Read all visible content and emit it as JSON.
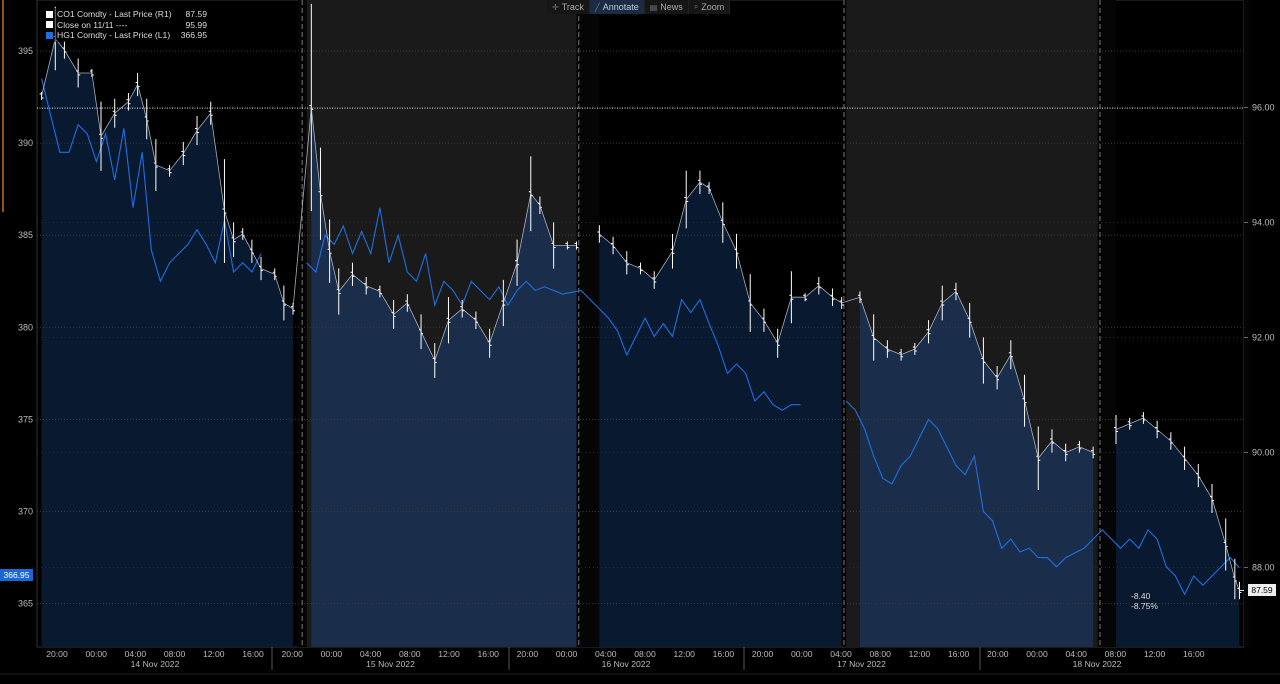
{
  "toolbar": {
    "track": "Track",
    "annotate": "Annotate",
    "news": "News",
    "zoom": "Zoom"
  },
  "legend": [
    {
      "name": "CO1 Comdty - Last Price (R1)",
      "value": "87.59",
      "color": "#ffffff"
    },
    {
      "name": "Close on 11/11 ----",
      "value": "95.99",
      "color": "#ffffff"
    },
    {
      "name": "HG1 Comdty - Last Price (L1)",
      "value": "366.95",
      "color": "#1f6fe0"
    }
  ],
  "tags": {
    "left_last": "366.95",
    "right_last": "87.59",
    "change_abs": "-8.40",
    "change_pct": "-8.75%"
  },
  "colors": {
    "background": "#000000",
    "shade_light": "#1a2f4e",
    "shade_dark": "#081a33",
    "hg1_line": "#1f6fe0",
    "co1_bars": "#ffffff",
    "left_tag": "#1a68d8",
    "outage_band": "#1a1a1a"
  },
  "chart_data": {
    "type": "line",
    "x_axis": {
      "tick_labels": [
        "20:00",
        "00:00",
        "04:00",
        "08:00",
        "12:00",
        "16:00",
        "20:00",
        "00:00",
        "04:00",
        "08:00",
        "12:00",
        "16:00",
        "20:00",
        "00:00",
        "04:00",
        "08:00",
        "12:00",
        "16:00",
        "20:00",
        "00:00",
        "04:00",
        "08:00",
        "12:00",
        "16:00",
        "20:00",
        "00:00",
        "04:00",
        "08:00",
        "12:00",
        "16:00"
      ],
      "day_labels": [
        "14 Nov 2022",
        "15 Nov 2022",
        "16 Nov 2022",
        "17 Nov 2022",
        "18 Nov 2022"
      ]
    },
    "y_left": {
      "ticks": [
        365,
        370,
        375,
        380,
        385,
        390,
        395
      ],
      "ylim": [
        362,
        398
      ]
    },
    "y_right": {
      "ticks": [
        88.0,
        90.0,
        92.0,
        94.0,
        96.0
      ],
      "ylim": [
        85.7,
        97.7
      ]
    },
    "reference_line": {
      "value": 95.99,
      "axis": "right"
    },
    "series": [
      {
        "name": "CO1 Comdty - Last Price (R1)",
        "axis": "right",
        "style": "ohlc-bars",
        "values": [
          [
            0,
            96.2
          ],
          [
            1.5,
            97.2
          ],
          [
            2.5,
            97.0
          ],
          [
            4,
            96.6
          ],
          [
            5.5,
            96.6
          ],
          [
            6.5,
            95.5
          ],
          [
            8,
            95.9
          ],
          [
            9.5,
            96.1
          ],
          [
            10.5,
            96.4
          ],
          [
            11.5,
            95.8
          ],
          [
            12.5,
            95.0
          ],
          [
            14,
            94.9
          ],
          [
            15.5,
            95.2
          ],
          [
            17,
            95.6
          ],
          [
            18.5,
            95.9
          ],
          [
            20,
            94.2
          ],
          [
            21,
            93.7
          ],
          [
            22,
            93.8
          ],
          [
            23,
            93.5
          ],
          [
            24,
            93.2
          ],
          [
            25.5,
            93.1
          ],
          [
            26.5,
            92.6
          ],
          [
            27.5,
            92.5
          ],
          [
            29.5,
            96.0
          ],
          [
            30.5,
            94.5
          ],
          [
            31.5,
            93.5
          ],
          [
            32.5,
            92.8
          ],
          [
            34,
            93.1
          ],
          [
            35.5,
            92.9
          ],
          [
            37,
            92.8
          ],
          [
            38.5,
            92.4
          ],
          [
            40,
            92.6
          ],
          [
            41.5,
            92.1
          ],
          [
            43,
            91.6
          ],
          [
            44.5,
            92.3
          ],
          [
            46,
            92.5
          ],
          [
            47.5,
            92.3
          ],
          [
            49,
            91.9
          ],
          [
            50.5,
            92.6
          ],
          [
            52,
            93.3
          ],
          [
            53.5,
            94.5
          ],
          [
            54.5,
            94.3
          ],
          [
            56,
            93.6
          ],
          [
            57.5,
            93.6
          ],
          [
            58.5,
            93.6
          ],
          [
            61,
            93.8
          ],
          [
            62.5,
            93.6
          ],
          [
            64,
            93.3
          ],
          [
            65.5,
            93.2
          ],
          [
            67,
            93.0
          ],
          [
            69,
            93.5
          ],
          [
            70.5,
            94.4
          ],
          [
            72,
            94.7
          ],
          [
            73,
            94.6
          ],
          [
            74.5,
            94.0
          ],
          [
            76,
            93.5
          ],
          [
            77.5,
            92.6
          ],
          [
            79,
            92.3
          ],
          [
            80.5,
            91.9
          ],
          [
            82,
            92.7
          ],
          [
            83.5,
            92.7
          ],
          [
            85,
            92.9
          ],
          [
            86.5,
            92.7
          ],
          [
            87.5,
            92.6
          ],
          [
            89.5,
            92.7
          ],
          [
            91,
            92.0
          ],
          [
            92.5,
            91.8
          ],
          [
            94,
            91.7
          ],
          [
            95.5,
            91.8
          ],
          [
            97,
            92.1
          ],
          [
            98.5,
            92.6
          ],
          [
            100,
            92.8
          ],
          [
            101.5,
            92.3
          ],
          [
            103,
            91.6
          ],
          [
            104.5,
            91.3
          ],
          [
            106,
            91.7
          ],
          [
            107.5,
            90.9
          ],
          [
            109,
            89.9
          ],
          [
            110.5,
            90.2
          ],
          [
            112,
            90.0
          ],
          [
            113.5,
            90.1
          ],
          [
            115,
            90.0
          ],
          [
            117.5,
            90.4
          ],
          [
            119,
            90.5
          ],
          [
            120.5,
            90.6
          ],
          [
            122,
            90.4
          ],
          [
            123.5,
            90.2
          ],
          [
            125,
            89.9
          ],
          [
            126.5,
            89.6
          ],
          [
            128,
            89.2
          ],
          [
            129.5,
            88.4
          ],
          [
            130.5,
            87.8
          ],
          [
            131,
            87.6
          ]
        ]
      },
      {
        "name": "HG1 Comdty - Last Price (L1)",
        "axis": "left",
        "style": "line",
        "values": [
          [
            0,
            393.5
          ],
          [
            1,
            391.5
          ],
          [
            2,
            389.5
          ],
          [
            3,
            389.5
          ],
          [
            4,
            391.0
          ],
          [
            5,
            390.5
          ],
          [
            6,
            389.0
          ],
          [
            7,
            390.5
          ],
          [
            8,
            388.0
          ],
          [
            9,
            390.8
          ],
          [
            10,
            386.5
          ],
          [
            11,
            389.5
          ],
          [
            12,
            384.2
          ],
          [
            13,
            382.5
          ],
          [
            14,
            383.5
          ],
          [
            15,
            384.0
          ],
          [
            16,
            384.5
          ],
          [
            17,
            385.3
          ],
          [
            18,
            384.5
          ],
          [
            19,
            383.5
          ],
          [
            20,
            385.8
          ],
          [
            21,
            383.0
          ],
          [
            22,
            383.5
          ],
          [
            23,
            383.0
          ],
          [
            24,
            384.0
          ],
          [
            29,
            383.5
          ],
          [
            30,
            383.0
          ],
          [
            31,
            385.0
          ],
          [
            32,
            384.5
          ],
          [
            33,
            385.5
          ],
          [
            34,
            384.0
          ],
          [
            35,
            385.2
          ],
          [
            36,
            384.0
          ],
          [
            37,
            386.5
          ],
          [
            38,
            383.5
          ],
          [
            39,
            385.0
          ],
          [
            40,
            383.0
          ],
          [
            41,
            382.5
          ],
          [
            42,
            384.0
          ],
          [
            43,
            381.2
          ],
          [
            44,
            382.5
          ],
          [
            45,
            382.0
          ],
          [
            46,
            381.2
          ],
          [
            47,
            382.5
          ],
          [
            48,
            382.0
          ],
          [
            49,
            381.5
          ],
          [
            50,
            382.2
          ],
          [
            51,
            381.2
          ],
          [
            52,
            382.0
          ],
          [
            53,
            382.5
          ],
          [
            54,
            382.0
          ],
          [
            55,
            382.2
          ],
          [
            56,
            382.0
          ],
          [
            57,
            381.8
          ],
          [
            59,
            382.0
          ],
          [
            60,
            381.5
          ],
          [
            61,
            381.0
          ],
          [
            62,
            380.5
          ],
          [
            63,
            379.8
          ],
          [
            64,
            378.5
          ],
          [
            65,
            379.5
          ],
          [
            66,
            380.5
          ],
          [
            67,
            379.5
          ],
          [
            68,
            380.2
          ],
          [
            69,
            379.5
          ],
          [
            70,
            381.5
          ],
          [
            71,
            380.8
          ],
          [
            72,
            381.5
          ],
          [
            73,
            380.2
          ],
          [
            74,
            379.0
          ],
          [
            75,
            377.5
          ],
          [
            76,
            378.0
          ],
          [
            77,
            377.5
          ],
          [
            78,
            376.0
          ],
          [
            79,
            376.5
          ],
          [
            80,
            375.8
          ],
          [
            81,
            375.5
          ],
          [
            82,
            375.8
          ],
          [
            83,
            375.8
          ],
          [
            88,
            376.0
          ],
          [
            89,
            375.5
          ],
          [
            90,
            374.5
          ],
          [
            91,
            373.0
          ],
          [
            92,
            371.8
          ],
          [
            93,
            371.5
          ],
          [
            94,
            372.5
          ],
          [
            95,
            373.0
          ],
          [
            96,
            374.0
          ],
          [
            97,
            375.0
          ],
          [
            98,
            374.5
          ],
          [
            99,
            373.5
          ],
          [
            100,
            372.5
          ],
          [
            101,
            372.0
          ],
          [
            102,
            373.0
          ],
          [
            103,
            370.0
          ],
          [
            104,
            369.5
          ],
          [
            105,
            368.0
          ],
          [
            106,
            368.5
          ],
          [
            107,
            367.8
          ],
          [
            108,
            368.0
          ],
          [
            109,
            367.5
          ],
          [
            110,
            367.5
          ],
          [
            111,
            367.0
          ],
          [
            112,
            367.5
          ],
          [
            114,
            368.0
          ],
          [
            115,
            368.5
          ],
          [
            116,
            369.0
          ],
          [
            117,
            368.5
          ],
          [
            118,
            368.0
          ],
          [
            119,
            368.5
          ],
          [
            120,
            368.0
          ],
          [
            121,
            369.0
          ],
          [
            122,
            368.5
          ],
          [
            123,
            367.0
          ],
          [
            124,
            366.5
          ],
          [
            125,
            365.5
          ],
          [
            126,
            366.5
          ],
          [
            127,
            366.0
          ],
          [
            128,
            366.5
          ],
          [
            129,
            367.0
          ],
          [
            130,
            367.5
          ],
          [
            131,
            366.95
          ]
        ]
      }
    ]
  }
}
